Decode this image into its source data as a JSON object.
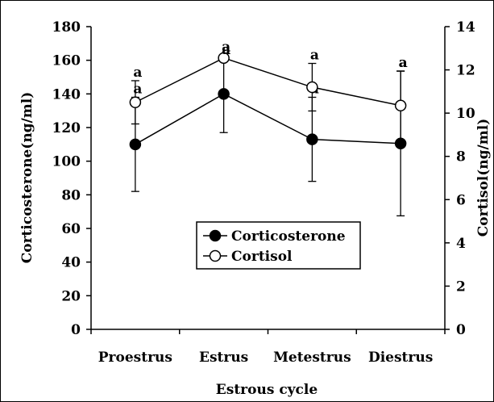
{
  "chart_data": {
    "type": "line",
    "title": "",
    "xlabel": "Estrous cycle",
    "ylabel_left": "Corticosterone(ng/ml)",
    "ylabel_right": "Cortisol(ng/ml)",
    "categories": [
      "Proestrus",
      "Estrus",
      "Metestrus",
      "Diestrus"
    ],
    "ylim_left": [
      0,
      180
    ],
    "yticks_left": [
      0,
      20,
      40,
      60,
      80,
      100,
      120,
      140,
      160,
      180
    ],
    "ylim_right": [
      0,
      14
    ],
    "yticks_right": [
      0,
      2,
      4,
      6,
      8,
      10,
      12,
      14
    ],
    "grid": false,
    "legend_position": "center",
    "series": [
      {
        "name": "Corticosterone",
        "axis": "left",
        "marker": "filled-circle",
        "values": [
          110,
          140,
          113,
          110.5
        ],
        "error": [
          28,
          23,
          25,
          43
        ],
        "significance_labels": [
          "a",
          "a",
          "a",
          "a"
        ]
      },
      {
        "name": "Cortisol",
        "axis": "right",
        "marker": "open-circle",
        "values": [
          10.5,
          12.55,
          11.2,
          10.35
        ],
        "error": [
          1.0,
          0.0,
          1.1,
          1.6
        ],
        "significance_labels": [
          "a",
          "a",
          "a",
          "a"
        ]
      }
    ]
  }
}
